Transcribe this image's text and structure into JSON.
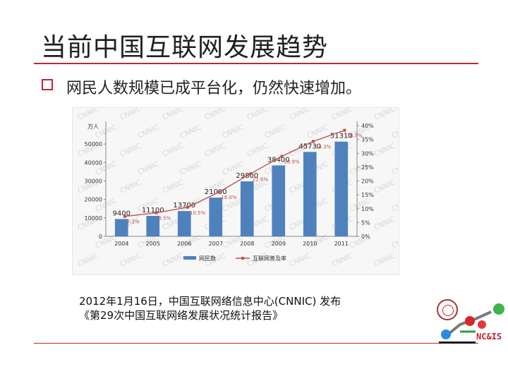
{
  "slide": {
    "title": "当前中国互联网发展趋势",
    "bullet": "网民人数规模已成平台化，仍然快速增加。",
    "source_line1": "2012年1月16日，中国互联网络信息中心(CNNIC) 发布",
    "source_line2": "《第29次中国互联网络发展状况统计报告》",
    "logo_text": "NC&IS"
  },
  "chart_data": {
    "type": "bar",
    "categories": [
      "2004",
      "2005",
      "2006",
      "2007",
      "2008",
      "2009",
      "2010",
      "2011"
    ],
    "series": [
      {
        "name": "网民数",
        "kind": "bar",
        "axis": "left",
        "values": [
          9400,
          11100,
          13700,
          21000,
          29800,
          38400,
          45730,
          51310
        ],
        "labels": [
          "9400",
          "11100",
          "13700",
          "21000",
          "29800",
          "38400",
          "45730",
          "51310"
        ],
        "color": "#4f81bd"
      },
      {
        "name": "互联网普及率",
        "kind": "line",
        "axis": "right",
        "values": [
          7.2,
          8.5,
          10.5,
          16.0,
          22.6,
          28.9,
          34.3,
          38.3
        ],
        "labels": [
          "7.2%",
          "8.5%",
          "10.5%",
          "16.0%",
          "22.6%",
          "28.9%",
          "34.3%",
          "38.3%"
        ],
        "color": "#c0504d"
      }
    ],
    "y_left": {
      "label": "万人",
      "min": 0,
      "max": 60000,
      "ticks": [
        "0",
        "10000",
        "20000",
        "30000",
        "40000",
        "50000"
      ]
    },
    "y_right": {
      "min": 0,
      "max": 40,
      "ticks": [
        "0%",
        "5%",
        "10%",
        "15%",
        "20%",
        "25%",
        "30%",
        "35%",
        "40%"
      ]
    },
    "legend_position": "bottom",
    "watermark_text": "CNNIC",
    "grid": false
  }
}
